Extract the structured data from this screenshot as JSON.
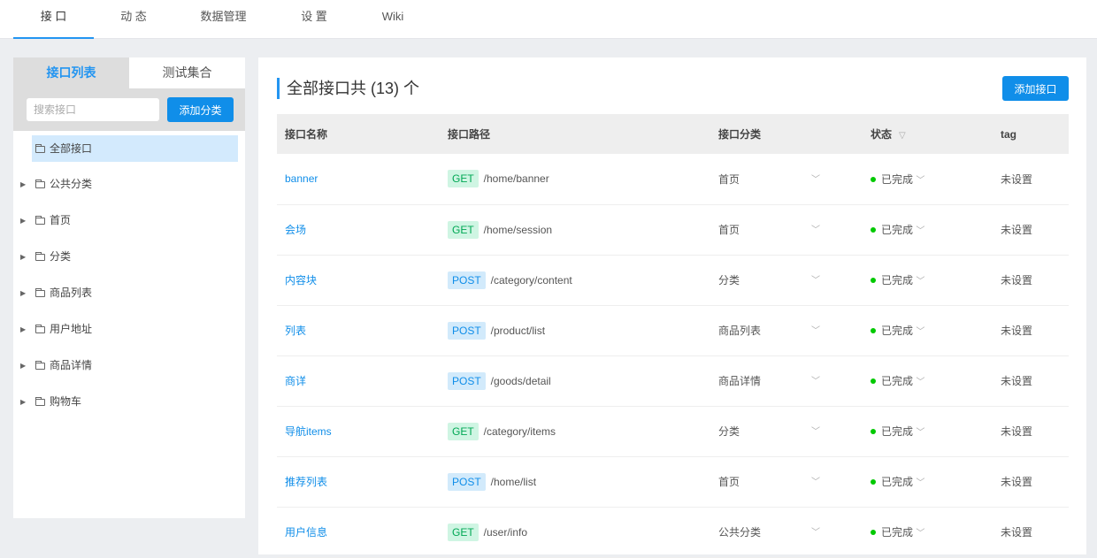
{
  "nav": {
    "items": [
      "接 口",
      "动 态",
      "数据管理",
      "设 置",
      "Wiki"
    ],
    "active": 0
  },
  "sidebar": {
    "tabs": [
      "接口列表",
      "测试集合"
    ],
    "search_placeholder": "搜索接口",
    "add_category": "添加分类",
    "tree": [
      {
        "label": "全部接口",
        "selected": true
      },
      {
        "label": "公共分类"
      },
      {
        "label": "首页"
      },
      {
        "label": "分类"
      },
      {
        "label": "商品列表"
      },
      {
        "label": "用户地址"
      },
      {
        "label": "商品详情"
      },
      {
        "label": "购物车"
      }
    ]
  },
  "main": {
    "title": "全部接口共 (13) 个",
    "add_button": "添加接口",
    "columns": [
      "接口名称",
      "接口路径",
      "接口分类",
      "状态",
      "tag"
    ],
    "rows": [
      {
        "name": "banner",
        "method": "GET",
        "path": "/home/banner",
        "category": "首页",
        "status": "已完成",
        "tag": "未设置"
      },
      {
        "name": "会场",
        "method": "GET",
        "path": "/home/session",
        "category": "首页",
        "status": "已完成",
        "tag": "未设置"
      },
      {
        "name": "内容块",
        "method": "POST",
        "path": "/category/content",
        "category": "分类",
        "status": "已完成",
        "tag": "未设置"
      },
      {
        "name": "列表",
        "method": "POST",
        "path": "/product/list",
        "category": "商品列表",
        "status": "已完成",
        "tag": "未设置"
      },
      {
        "name": "商详",
        "method": "POST",
        "path": "/goods/detail",
        "category": "商品详情",
        "status": "已完成",
        "tag": "未设置"
      },
      {
        "name": "导航items",
        "method": "GET",
        "path": "/category/items",
        "category": "分类",
        "status": "已完成",
        "tag": "未设置"
      },
      {
        "name": "推荐列表",
        "method": "POST",
        "path": "/home/list",
        "category": "首页",
        "status": "已完成",
        "tag": "未设置"
      },
      {
        "name": "用户信息",
        "method": "GET",
        "path": "/user/info",
        "category": "公共分类",
        "status": "已完成",
        "tag": "未设置"
      }
    ]
  },
  "colors": {
    "accent": "#108ee9",
    "get_bg": "#cff5e3",
    "get_text": "#00a854",
    "post_bg": "#d2eafb",
    "status_dot": "#00c900"
  }
}
